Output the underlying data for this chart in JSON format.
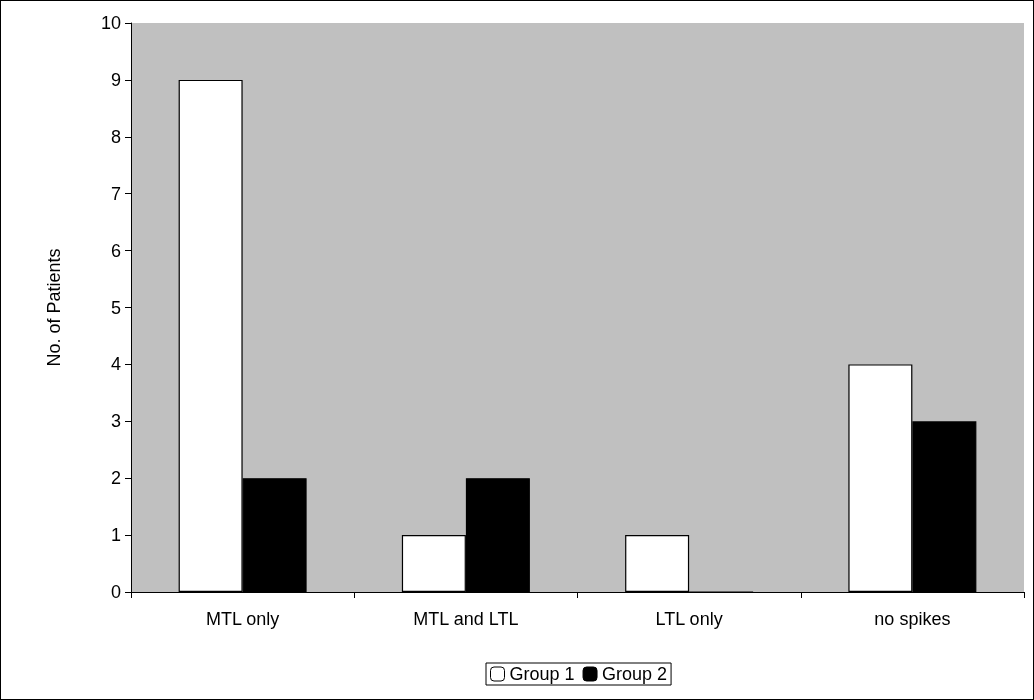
{
  "chart_data": {
    "type": "bar",
    "ylabel": "No. of Patients",
    "categories": [
      "MTL only",
      "MTL and LTL",
      "LTL only",
      "no spikes"
    ],
    "series": [
      {
        "name": "Group 1",
        "color": "#ffffff",
        "values": [
          9,
          1,
          1,
          4
        ]
      },
      {
        "name": "Group 2",
        "color": "#000000",
        "values": [
          2,
          2,
          0,
          3
        ]
      }
    ],
    "ylim": [
      0,
      10
    ],
    "yticks": [
      0,
      1,
      2,
      3,
      4,
      5,
      6,
      7,
      8,
      9,
      10
    ],
    "grid": false,
    "legend": "bottom"
  }
}
